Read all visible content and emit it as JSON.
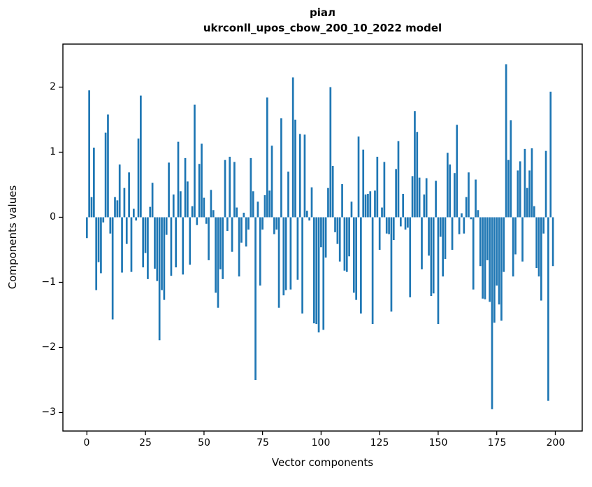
{
  "chart_data": {
    "type": "bar",
    "title": "ріал",
    "subtitle": "ukrconll_upos_cbow_200_10_2022 model",
    "xlabel": "Vector components",
    "ylabel": "Components values",
    "bar_color": "#1f77b4",
    "spine_color": "#000000",
    "grid": false,
    "legend": "none",
    "xlim": [
      -10.45,
      209.45
    ],
    "ylim": [
      -3.26,
      2.66
    ],
    "xticks": [
      0,
      25,
      50,
      75,
      100,
      125,
      150,
      175,
      200
    ],
    "ytick_values": [
      2,
      1,
      0,
      -1,
      -2,
      -3
    ],
    "ytick_labels": [
      "2",
      "1",
      "0",
      "−1",
      "−2",
      "−3"
    ],
    "x_start_index": 0,
    "values": [
      -0.32,
      1.95,
      0.31,
      1.07,
      -1.12,
      -0.69,
      -0.86,
      -0.08,
      1.3,
      1.58,
      -0.25,
      -1.57,
      0.31,
      0.26,
      0.81,
      -0.85,
      0.45,
      -0.41,
      0.69,
      -0.84,
      0.13,
      -0.05,
      1.21,
      1.87,
      -0.77,
      -0.55,
      -0.95,
      0.16,
      0.53,
      -0.79,
      -0.98,
      -1.89,
      -1.12,
      -1.27,
      -0.27,
      0.84,
      -0.9,
      0.35,
      -0.77,
      1.16,
      0.4,
      -0.88,
      0.91,
      0.55,
      -0.73,
      0.17,
      1.73,
      -0.12,
      0.82,
      1.13,
      0.3,
      -0.1,
      -0.66,
      0.42,
      0.11,
      -1.16,
      -1.39,
      -0.8,
      -0.95,
      0.88,
      -0.21,
      0.93,
      -0.53,
      0.85,
      0.15,
      -0.91,
      -0.39,
      0.07,
      -0.45,
      -0.19,
      0.91,
      0.4,
      -2.5,
      0.24,
      -1.05,
      -0.19,
      0.34,
      1.84,
      0.41,
      1.1,
      -0.26,
      -0.19,
      -1.39,
      1.52,
      -1.2,
      -1.12,
      0.7,
      -1.11,
      2.15,
      1.5,
      -0.96,
      1.28,
      -1.48,
      1.27,
      0.1,
      -0.05,
      0.46,
      -1.63,
      -1.64,
      -1.77,
      -0.46,
      -1.73,
      -0.62,
      0.45,
      2.0,
      0.79,
      -0.23,
      -0.41,
      -0.68,
      0.51,
      -0.82,
      -0.84,
      -0.6,
      0.24,
      -1.16,
      -1.27,
      1.24,
      -1.48,
      1.04,
      0.35,
      0.36,
      0.4,
      -1.64,
      0.41,
      0.93,
      -0.5,
      0.15,
      0.85,
      -0.25,
      -0.26,
      -1.45,
      -0.35,
      0.74,
      1.17,
      -0.14,
      0.36,
      -0.19,
      -0.16,
      -1.23,
      0.63,
      1.63,
      1.31,
      0.61,
      -0.8,
      0.35,
      0.6,
      -0.59,
      -1.21,
      -1.17,
      0.56,
      -1.64,
      -0.3,
      -0.91,
      -0.64,
      0.99,
      0.81,
      -0.5,
      0.68,
      1.42,
      -0.26,
      0.06,
      -0.25,
      0.31,
      0.69,
      -0.03,
      -1.11,
      0.58,
      0.11,
      -0.75,
      -1.25,
      -1.26,
      -0.66,
      -1.3,
      -2.95,
      -1.62,
      -1.05,
      -1.34,
      -1.59,
      -0.84,
      2.35,
      0.88,
      1.49,
      -0.91,
      -0.57,
      0.72,
      0.86,
      -0.68,
      1.05,
      0.45,
      0.72,
      1.06,
      0.17,
      -0.78,
      -0.91,
      -1.28,
      -0.25,
      1.02,
      -2.82,
      1.93,
      -0.75
    ]
  }
}
